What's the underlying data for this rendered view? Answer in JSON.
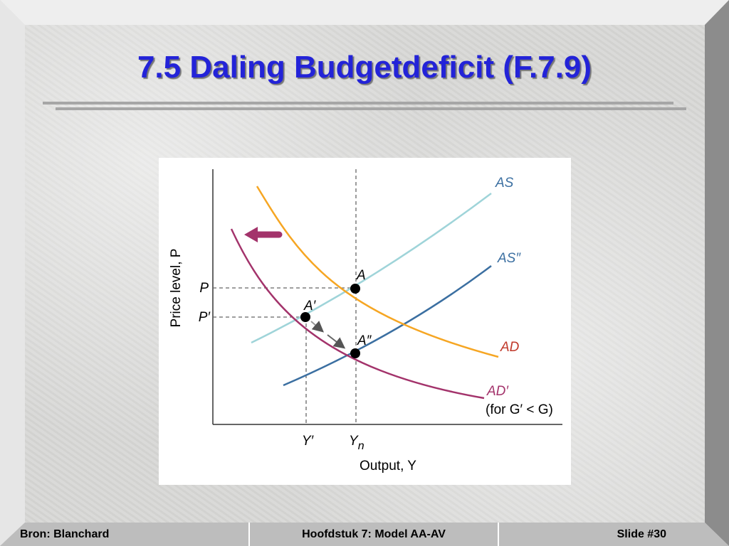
{
  "header": {
    "title": "7.5 Daling Budgetdeficit (F.7.9)"
  },
  "diagram": {
    "y_axis_label": "Price level, P",
    "x_axis_label": "Output, Y",
    "curves": {
      "as": "AS",
      "as2": "AS″",
      "ad": "AD",
      "ad2": "AD′",
      "ad2_note": "(for G′ < G)"
    },
    "points": {
      "a": "A",
      "a1": "A′",
      "a2": "A″"
    },
    "y_ticks": {
      "p": "P",
      "p1": "P′"
    },
    "x_ticks": {
      "y1": "Y′",
      "yn": {
        "text": "Y",
        "sub": "n"
      }
    }
  },
  "footer": {
    "left": "Bron: Blanchard",
    "center": "Hoofdstuk 7: Model AA-AV",
    "right": "Slide #30"
  }
}
